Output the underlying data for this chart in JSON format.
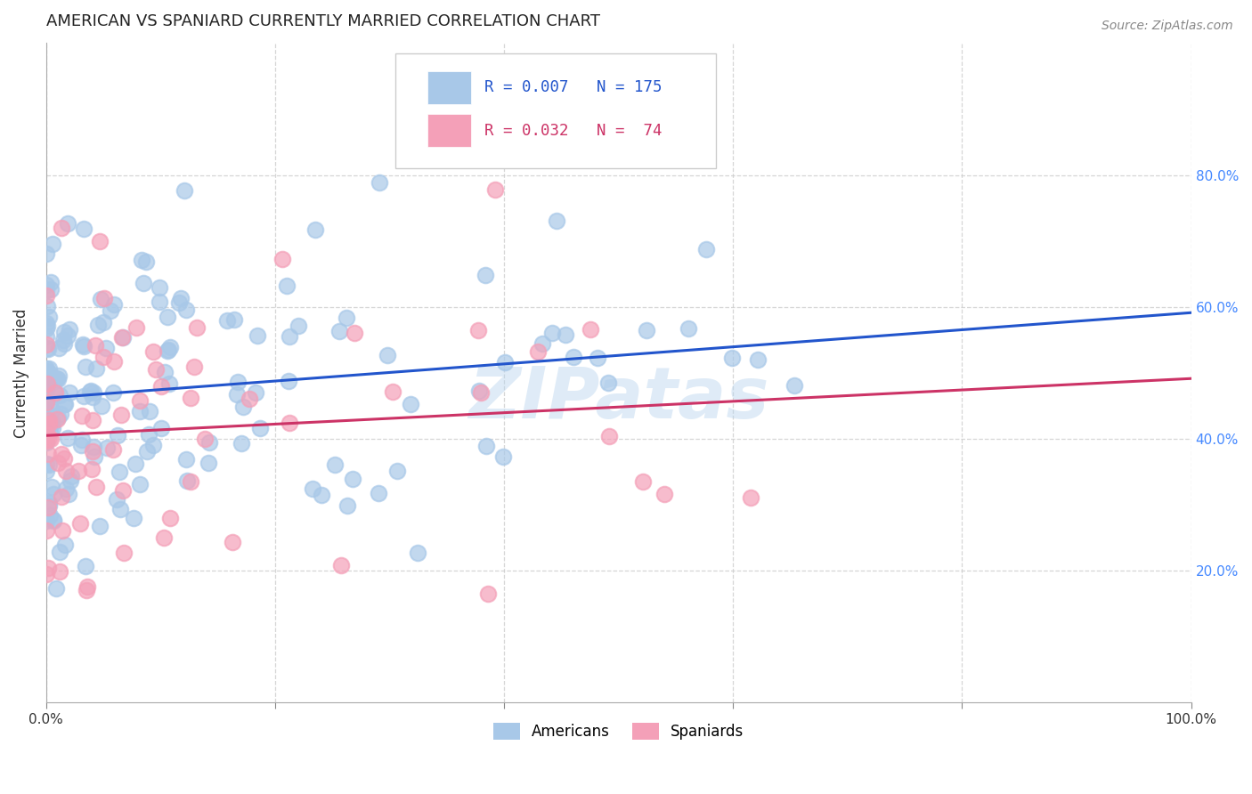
{
  "title": "AMERICAN VS SPANIARD CURRENTLY MARRIED CORRELATION CHART",
  "source": "Source: ZipAtlas.com",
  "ylabel": "Currently Married",
  "watermark": "ZIPatas",
  "legend_american": "Americans",
  "legend_spaniard": "Spaniards",
  "american_R": "0.007",
  "american_N": "175",
  "spaniard_R": "0.032",
  "spaniard_N": "74",
  "american_color": "#a8c8e8",
  "spaniard_color": "#f4a0b8",
  "american_line_color": "#2255cc",
  "spaniard_line_color": "#cc3366",
  "xlim": [
    0,
    1
  ],
  "ylim": [
    0,
    1
  ],
  "xticks": [
    0.0,
    0.2,
    0.4,
    0.6,
    0.8,
    1.0
  ],
  "yticks": [
    0.2,
    0.4,
    0.6,
    0.8
  ],
  "xtick_labels": [
    "0.0%",
    "",
    "",
    "",
    "",
    "100.0%"
  ],
  "ytick_labels_right": [
    "20.0%",
    "40.0%",
    "60.0%",
    "80.0%"
  ],
  "background_color": "#ffffff",
  "grid_color": "#cccccc",
  "american_seed": 42,
  "spaniard_seed": 7
}
